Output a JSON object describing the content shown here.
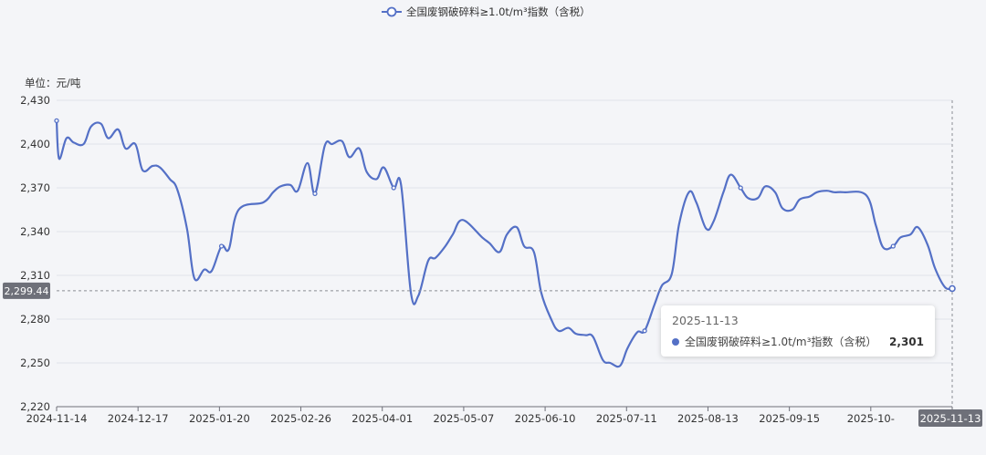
{
  "chart_data": {
    "type": "line",
    "title": "",
    "unit_label": "单位：元/吨",
    "legend": {
      "position": "top-center",
      "entries": [
        "全国废钢破碎料≥1.0t/m³指数（含税）"
      ]
    },
    "series_color": "#5470c6",
    "ylim": [
      2220,
      2430
    ],
    "yticks": [
      "2,220",
      "2,250",
      "2,280",
      "2,310",
      "2,340",
      "2,370",
      "2,400",
      "2,430"
    ],
    "ytick_values": [
      2220,
      2250,
      2280,
      2310,
      2340,
      2370,
      2400,
      2430
    ],
    "xticks": [
      "2024-11-14",
      "2024-12-17",
      "2025-01-20",
      "2025-02-26",
      "2025-04-01",
      "2025-05-07",
      "2025-06-10",
      "2025-07-11",
      "2025-08-13",
      "2025-09-15",
      "2025-10-",
      "2025-11-13"
    ],
    "series": [
      {
        "name": "全国废钢破碎料≥1.0t/m³指数（含税）",
        "x": [
          "2024-11-14",
          "2024-11-15",
          "2024-11-18",
          "2024-11-21",
          "2024-11-25",
          "2024-11-28",
          "2024-12-02",
          "2024-12-05",
          "2024-12-09",
          "2024-12-12",
          "2024-12-16",
          "2024-12-19",
          "2024-12-23",
          "2024-12-26",
          "2024-12-30",
          "2025-01-02",
          "2025-01-06",
          "2025-01-09",
          "2025-01-13",
          "2025-01-16",
          "2025-01-20",
          "2025-01-23",
          "2025-01-27",
          "2025-02-06",
          "2025-02-10",
          "2025-02-13",
          "2025-02-17",
          "2025-02-20",
          "2025-02-24",
          "2025-02-27",
          "2025-03-03",
          "2025-03-06",
          "2025-03-10",
          "2025-03-13",
          "2025-03-17",
          "2025-03-20",
          "2025-03-24",
          "2025-03-27",
          "2025-03-31",
          "2025-04-03",
          "2025-04-07",
          "2025-04-10",
          "2025-04-14",
          "2025-04-17",
          "2025-04-21",
          "2025-04-24",
          "2025-04-28",
          "2025-05-06",
          "2025-05-09",
          "2025-05-13",
          "2025-05-16",
          "2025-05-20",
          "2025-05-23",
          "2025-05-27",
          "2025-05-30",
          "2025-06-03",
          "2025-06-06",
          "2025-06-10",
          "2025-06-13",
          "2025-06-17",
          "2025-06-20",
          "2025-06-24",
          "2025-06-27",
          "2025-07-01",
          "2025-07-04",
          "2025-07-08",
          "2025-07-11",
          "2025-07-15",
          "2025-07-18",
          "2025-07-22",
          "2025-07-25",
          "2025-07-29",
          "2025-08-01",
          "2025-08-05",
          "2025-08-08",
          "2025-08-12",
          "2025-08-15",
          "2025-08-19",
          "2025-08-22",
          "2025-08-26",
          "2025-08-29",
          "2025-09-02",
          "2025-09-05",
          "2025-09-09",
          "2025-09-12",
          "2025-09-16",
          "2025-09-19",
          "2025-09-23",
          "2025-09-26",
          "2025-09-30",
          "2025-10-09",
          "2025-10-13",
          "2025-10-16",
          "2025-10-20",
          "2025-10-23",
          "2025-10-27",
          "2025-10-30",
          "2025-11-03",
          "2025-11-06",
          "2025-11-10",
          "2025-11-13"
        ],
        "values": [
          2416,
          2390,
          2404,
          2401,
          2400,
          2412,
          2414,
          2404,
          2410,
          2397,
          2400,
          2382,
          2385,
          2384,
          2376,
          2369,
          2342,
          2308,
          2314,
          2313,
          2330,
          2328,
          2355,
          2360,
          2367,
          2371,
          2372,
          2368,
          2387,
          2366,
          2399,
          2400,
          2402,
          2391,
          2397,
          2381,
          2376,
          2384,
          2370,
          2372,
          2298,
          2296,
          2320,
          2322,
          2330,
          2338,
          2348,
          2336,
          2332,
          2326,
          2338,
          2343,
          2330,
          2326,
          2298,
          2280,
          2272,
          2274,
          2270,
          2269,
          2268,
          2252,
          2250,
          2248,
          2260,
          2271,
          2272,
          2290,
          2303,
          2311,
          2345,
          2367,
          2360,
          2342,
          2347,
          2367,
          2379,
          2370,
          2363,
          2363,
          2371,
          2367,
          2356,
          2355,
          2362,
          2364,
          2367,
          2368,
          2367,
          2367,
          2365,
          2344,
          2329,
          2330,
          2336,
          2338,
          2343,
          2331,
          2315,
          2302,
          2301
        ]
      }
    ],
    "y_axis_pointer_label": "2,299.44",
    "x_axis_pointer_label": "2025-11-13",
    "tooltip": {
      "date": "2025-11-13",
      "series_name": "全国废钢破碎料≥1.0t/m³指数（含税）",
      "value": "2,301"
    },
    "grid": "horizontal"
  }
}
